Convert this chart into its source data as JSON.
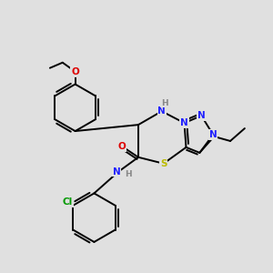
{
  "bg": "#e0e0e0",
  "bc": "#000000",
  "bw": 1.4,
  "atom_colors": {
    "N": "#2020ff",
    "O": "#dd0000",
    "S": "#bbbb00",
    "Cl": "#009900",
    "H": "#888888"
  },
  "fs": 7.5,
  "fig_w": 3.0,
  "fig_h": 3.0,
  "dpi": 100
}
